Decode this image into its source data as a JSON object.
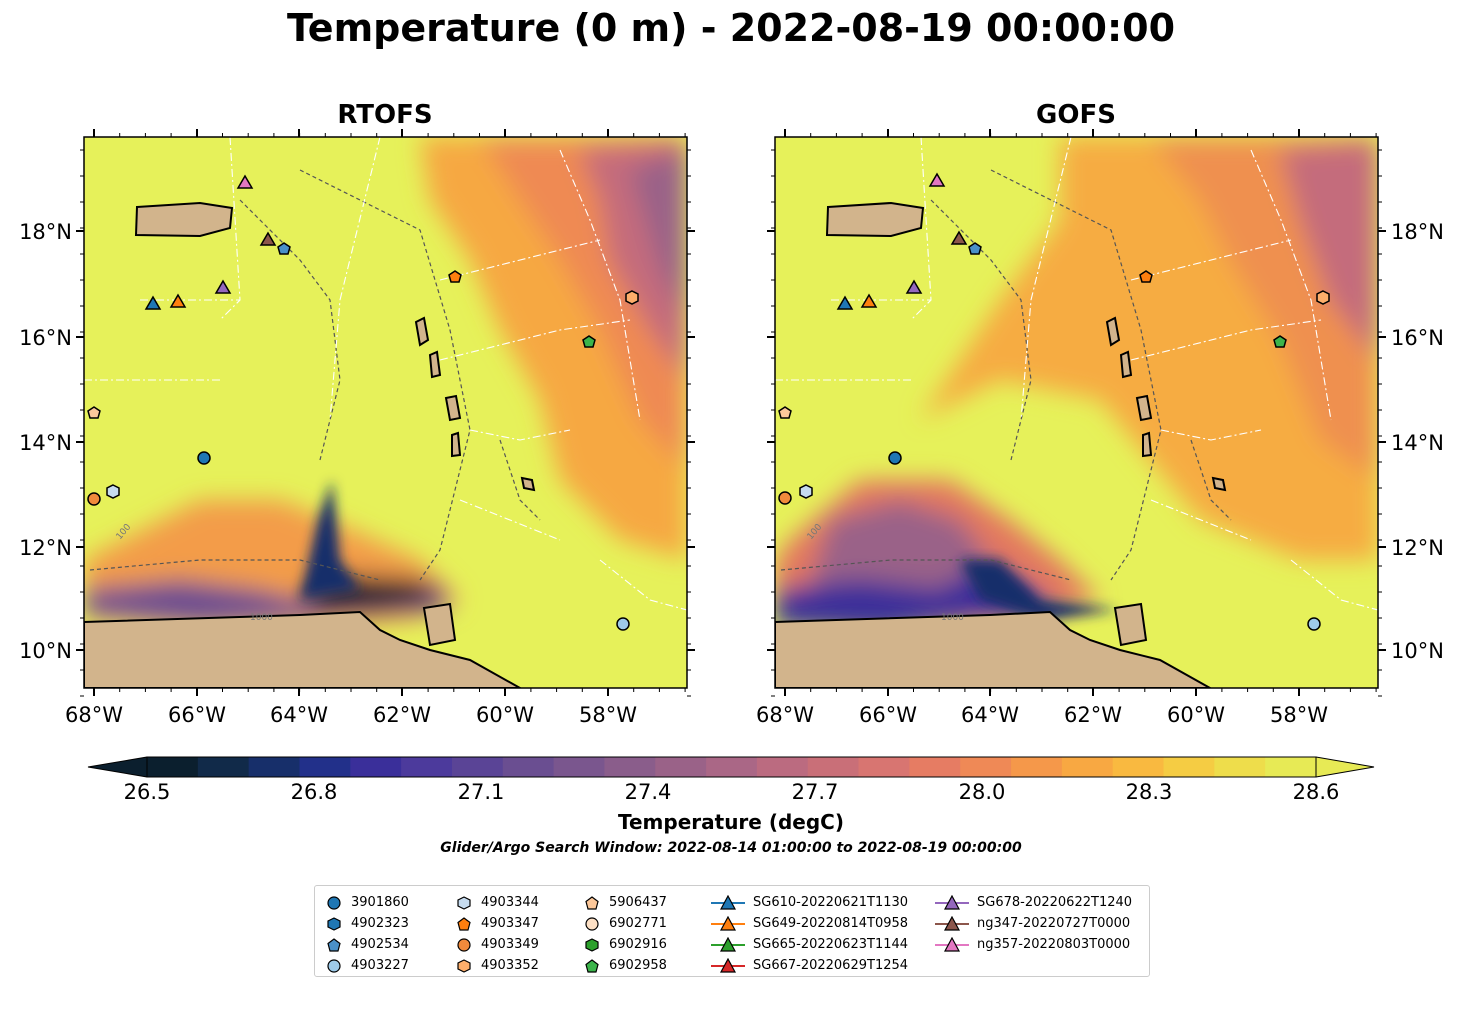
{
  "title": "Temperature (0 m) - 2022-08-19 00:00:00",
  "panels": [
    {
      "name": "RTOFS"
    },
    {
      "name": "GOFS"
    }
  ],
  "lat_ticks": [
    "18°N",
    "16°N",
    "14°N",
    "12°N",
    "10°N"
  ],
  "lon_ticks": [
    "68°W",
    "66°W",
    "64°W",
    "62°W",
    "60°W",
    "58°W"
  ],
  "colorbar": {
    "ticks": [
      "26.5",
      "26.8",
      "27.1",
      "27.4",
      "27.7",
      "28.0",
      "28.3",
      "28.6"
    ],
    "label": "Temperature (degC)",
    "colors": [
      "#0b1f2e",
      "#112a49",
      "#172f6a",
      "#22308a",
      "#3a2f9a",
      "#4c3a9c",
      "#5a4496",
      "#6a4e91",
      "#7a568e",
      "#8a5d8b",
      "#9a6288",
      "#aa6786",
      "#bb6b80",
      "#c96f78",
      "#d87571",
      "#e67c63",
      "#ef8956",
      "#f5984a",
      "#f8a842",
      "#f9b940",
      "#f5cc43",
      "#eedd4b",
      "#e7ea55"
    ]
  },
  "search_window": "Glider/Argo Search Window: 2022-08-14 01:00:00 to 2022-08-19 00:00:00",
  "legend": {
    "columns": [
      [
        {
          "label": "3901860",
          "marker": "circle",
          "color": "#1f77b4"
        },
        {
          "label": "4902323",
          "marker": "hexagon",
          "color": "#1f77b4"
        },
        {
          "label": "4902534",
          "marker": "pentagon",
          "color": "#4a90c8"
        },
        {
          "label": "4903227",
          "marker": "circle",
          "color": "#9ecae9"
        }
      ],
      [
        {
          "label": "4903344",
          "marker": "hexagon",
          "color": "#c6dbef"
        },
        {
          "label": "4903347",
          "marker": "pentagon",
          "color": "#ff7f0e"
        },
        {
          "label": "4903349",
          "marker": "circle",
          "color": "#f08a3c"
        },
        {
          "label": "4903352",
          "marker": "hexagon",
          "color": "#fdae6b"
        }
      ],
      [
        {
          "label": "5906437",
          "marker": "pentagon",
          "color": "#fdc89a"
        },
        {
          "label": "6902771",
          "marker": "circle",
          "color": "#fde0c5"
        },
        {
          "label": "6902916",
          "marker": "hexagon",
          "color": "#2ca02c"
        },
        {
          "label": "6902958",
          "marker": "pentagon",
          "color": "#3cb44b"
        }
      ],
      [
        {
          "label": "SG610-20220621T1130",
          "marker": "triangle-line",
          "color": "#1f77b4"
        },
        {
          "label": "SG649-20220814T0958",
          "marker": "triangle-line",
          "color": "#ff7f0e"
        },
        {
          "label": "SG665-20220623T1144",
          "marker": "triangle-line",
          "color": "#2ca02c"
        },
        {
          "label": "SG667-20220629T1254",
          "marker": "triangle-line",
          "color": "#d62728"
        }
      ],
      [
        {
          "label": "SG678-20220622T1240",
          "marker": "triangle-line",
          "color": "#9467bd"
        },
        {
          "label": "ng347-20220727T0000",
          "marker": "triangle-line",
          "color": "#8c564b"
        },
        {
          "label": "ng357-20220803T0000",
          "marker": "triangle-line",
          "color": "#e377c2"
        }
      ]
    ]
  },
  "contour_labels": [
    "100",
    "1000"
  ]
}
